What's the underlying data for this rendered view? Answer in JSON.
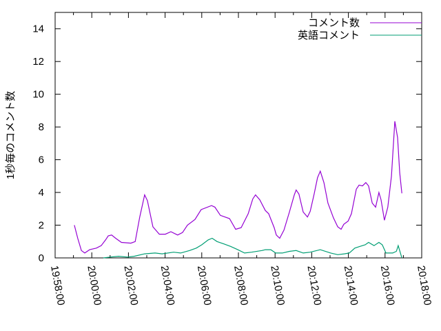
{
  "chart_data": {
    "type": "line",
    "title": "",
    "xlabel": "",
    "ylabel": "1秒毎のコメント数",
    "xlim": [
      "19:58:00",
      "20:18:00"
    ],
    "ylim": [
      0,
      15
    ],
    "grid": false,
    "legend_position": "top-right",
    "x_ticks": [
      "19:58:00",
      "20:00:00",
      "20:02:00",
      "20:04:00",
      "20:06:00",
      "20:08:00",
      "20:10:00",
      "20:12:00",
      "20:14:00",
      "20:16:00",
      "20:18:00"
    ],
    "y_ticks": [
      "0",
      "2",
      "4",
      "6",
      "8",
      "10",
      "12",
      "14"
    ],
    "series": [
      {
        "name": "コメント数",
        "color": "#9400d3",
        "points": [
          [
            "19:59:03",
            2.0
          ],
          [
            "19:59:14",
            1.2
          ],
          [
            "19:59:26",
            0.45
          ],
          [
            "19:59:37",
            0.3
          ],
          [
            "19:59:53",
            0.5
          ],
          [
            "20:00:15",
            0.6
          ],
          [
            "20:00:31",
            0.75
          ],
          [
            "20:00:45",
            1.1
          ],
          [
            "20:00:54",
            1.35
          ],
          [
            "20:01:05",
            1.4
          ],
          [
            "20:01:18",
            1.2
          ],
          [
            "20:01:37",
            0.95
          ],
          [
            "20:02:08",
            0.9
          ],
          [
            "20:02:22",
            1.0
          ],
          [
            "20:02:37",
            2.5
          ],
          [
            "20:02:53",
            3.85
          ],
          [
            "20:03:02",
            3.5
          ],
          [
            "20:03:20",
            1.9
          ],
          [
            "20:03:41",
            1.45
          ],
          [
            "20:04:01",
            1.45
          ],
          [
            "20:04:19",
            1.6
          ],
          [
            "20:04:41",
            1.4
          ],
          [
            "20:04:57",
            1.55
          ],
          [
            "20:05:13",
            2.0
          ],
          [
            "20:05:38",
            2.35
          ],
          [
            "20:05:58",
            2.95
          ],
          [
            "20:06:32",
            3.2
          ],
          [
            "20:06:43",
            3.1
          ],
          [
            "20:07:01",
            2.6
          ],
          [
            "20:07:31",
            2.4
          ],
          [
            "20:07:51",
            1.75
          ],
          [
            "20:08:09",
            1.85
          ],
          [
            "20:08:32",
            2.7
          ],
          [
            "20:08:47",
            3.6
          ],
          [
            "20:08:56",
            3.85
          ],
          [
            "20:09:10",
            3.55
          ],
          [
            "20:09:28",
            2.9
          ],
          [
            "20:09:39",
            2.7
          ],
          [
            "20:09:57",
            1.85
          ],
          [
            "20:10:04",
            1.4
          ],
          [
            "20:10:15",
            1.2
          ],
          [
            "20:10:29",
            1.7
          ],
          [
            "20:10:47",
            2.8
          ],
          [
            "20:11:03",
            3.85
          ],
          [
            "20:11:09",
            4.15
          ],
          [
            "20:11:18",
            3.9
          ],
          [
            "20:11:32",
            2.8
          ],
          [
            "20:11:46",
            2.5
          ],
          [
            "20:11:55",
            2.85
          ],
          [
            "20:12:08",
            3.9
          ],
          [
            "20:12:19",
            4.9
          ],
          [
            "20:12:28",
            5.3
          ],
          [
            "20:12:40",
            4.6
          ],
          [
            "20:12:53",
            3.35
          ],
          [
            "20:13:11",
            2.45
          ],
          [
            "20:13:25",
            1.9
          ],
          [
            "20:13:36",
            1.75
          ],
          [
            "20:13:45",
            2.05
          ],
          [
            "20:13:59",
            2.25
          ],
          [
            "20:14:10",
            2.7
          ],
          [
            "20:14:26",
            4.2
          ],
          [
            "20:14:35",
            4.45
          ],
          [
            "20:14:46",
            4.4
          ],
          [
            "20:14:57",
            4.6
          ],
          [
            "20:15:06",
            4.4
          ],
          [
            "20:15:18",
            3.35
          ],
          [
            "20:15:29",
            3.1
          ],
          [
            "20:15:40",
            4.0
          ],
          [
            "20:15:47",
            3.55
          ],
          [
            "20:15:58",
            2.3
          ],
          [
            "20:16:09",
            3.1
          ],
          [
            "20:16:21",
            5.0
          ],
          [
            "20:16:32",
            8.35
          ],
          [
            "20:16:41",
            7.35
          ],
          [
            "20:16:48",
            5.2
          ],
          [
            "20:16:55",
            3.95
          ]
        ]
      },
      {
        "name": "英語コメント",
        "color": "#009e73",
        "points": [
          [
            "20:00:38",
            0.0
          ],
          [
            "20:01:00",
            0.05
          ],
          [
            "20:01:28",
            0.1
          ],
          [
            "20:01:57",
            0.05
          ],
          [
            "20:02:19",
            0.1
          ],
          [
            "20:02:53",
            0.25
          ],
          [
            "20:03:27",
            0.3
          ],
          [
            "20:03:50",
            0.25
          ],
          [
            "20:04:28",
            0.35
          ],
          [
            "20:04:51",
            0.3
          ],
          [
            "20:05:20",
            0.45
          ],
          [
            "20:05:42",
            0.6
          ],
          [
            "20:06:00",
            0.8
          ],
          [
            "20:06:21",
            1.1
          ],
          [
            "20:06:34",
            1.2
          ],
          [
            "20:06:50",
            1.0
          ],
          [
            "20:07:13",
            0.85
          ],
          [
            "20:07:35",
            0.7
          ],
          [
            "20:07:58",
            0.5
          ],
          [
            "20:08:20",
            0.3
          ],
          [
            "20:08:43",
            0.35
          ],
          [
            "20:09:17",
            0.45
          ],
          [
            "20:09:28",
            0.5
          ],
          [
            "20:09:46",
            0.5
          ],
          [
            "20:10:02",
            0.3
          ],
          [
            "20:10:24",
            0.3
          ],
          [
            "20:10:47",
            0.4
          ],
          [
            "20:11:09",
            0.45
          ],
          [
            "20:11:32",
            0.3
          ],
          [
            "20:11:55",
            0.35
          ],
          [
            "20:12:28",
            0.5
          ],
          [
            "20:13:02",
            0.3
          ],
          [
            "20:13:25",
            0.2
          ],
          [
            "20:13:47",
            0.25
          ],
          [
            "20:14:03",
            0.3
          ],
          [
            "20:14:21",
            0.6
          ],
          [
            "20:14:37",
            0.7
          ],
          [
            "20:14:55",
            0.8
          ],
          [
            "20:15:06",
            0.95
          ],
          [
            "20:15:24",
            0.75
          ],
          [
            "20:15:40",
            0.95
          ],
          [
            "20:15:51",
            0.8
          ],
          [
            "20:16:03",
            0.3
          ],
          [
            "20:16:25",
            0.3
          ],
          [
            "20:16:37",
            0.4
          ],
          [
            "20:16:43",
            0.75
          ],
          [
            "20:16:55",
            0.0
          ]
        ]
      }
    ]
  }
}
